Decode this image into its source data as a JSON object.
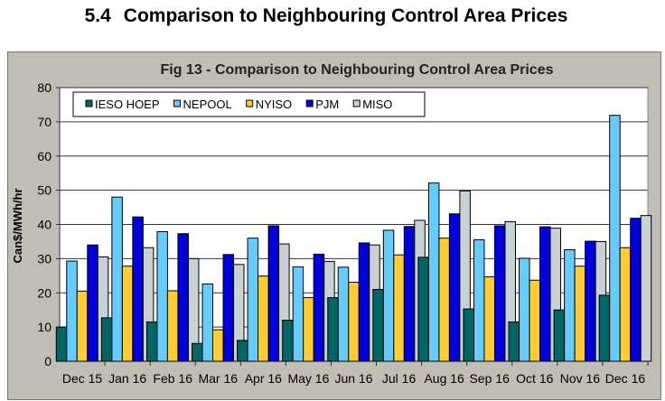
{
  "heading": {
    "number": "5.4",
    "text": "Comparison to Neighbouring Control Area Prices"
  },
  "chart_data": {
    "type": "bar",
    "title": "Fig  13 - Comparison to Neighbouring Control Area Prices",
    "xlabel": "",
    "ylabel": "Can$/MWh/hr",
    "ylim": [
      0,
      80
    ],
    "yticks": [
      0,
      10,
      20,
      30,
      40,
      50,
      60,
      70,
      80
    ],
    "grid": true,
    "legend": "top-left",
    "categories": [
      "Dec 15",
      "Jan 16",
      "Feb 16",
      "Mar 16",
      "Apr 16",
      "May 16",
      "Jun 16",
      "Jul 16",
      "Aug 16",
      "Sep 16",
      "Oct 16",
      "Nov 16",
      "Dec 16"
    ],
    "series": [
      {
        "name": "IESO HOEP",
        "color": "#006666",
        "values": [
          10,
          12.7,
          11.5,
          5.2,
          6.1,
          12,
          18.6,
          21,
          30.4,
          15.3,
          11.5,
          15,
          19.3
        ]
      },
      {
        "name": "NEPOOL",
        "color": "#66ccff",
        "values": [
          29.3,
          48,
          37.9,
          22.6,
          36,
          27.6,
          27.5,
          38.3,
          52.1,
          35.5,
          30.1,
          32.6,
          71.9
        ]
      },
      {
        "name": "NYISO",
        "color": "#ffcc33",
        "values": [
          20.5,
          27.8,
          20.6,
          9.2,
          24.9,
          18.6,
          23.1,
          31.1,
          36,
          24.7,
          23.7,
          27.8,
          33.2
        ]
      },
      {
        "name": "PJM",
        "color": "#0000dd",
        "values": [
          34,
          42.2,
          37.3,
          31.2,
          39.6,
          31.3,
          34.6,
          39.4,
          43.1,
          39.6,
          39.3,
          35.1,
          41.8
        ]
      },
      {
        "name": "MISO",
        "color": "#c8d2d4",
        "values": [
          30.5,
          33.2,
          30,
          28.3,
          34.3,
          29.2,
          34,
          41.2,
          49.8,
          40.8,
          38.9,
          35,
          42.6
        ]
      }
    ]
  }
}
